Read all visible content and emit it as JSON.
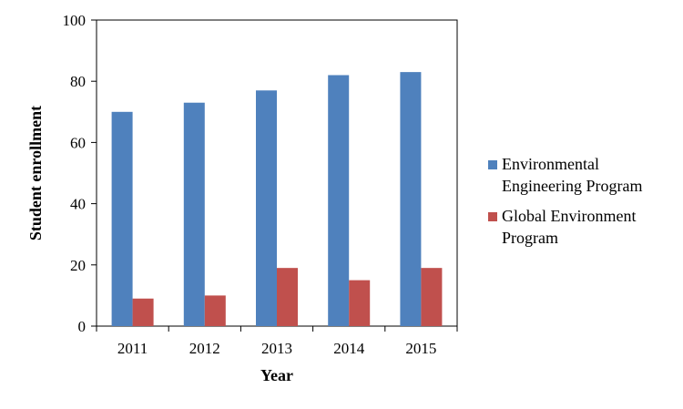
{
  "chart_data": {
    "type": "bar",
    "categories": [
      "2011",
      "2012",
      "2013",
      "2014",
      "2015"
    ],
    "series": [
      {
        "name": "Environmental Engineering Program",
        "name_lines": [
          "Environmental",
          "Engineering Program"
        ],
        "values": [
          70,
          73,
          77,
          82,
          83
        ],
        "color": "#4F81BD"
      },
      {
        "name": "Global Environment Program",
        "name_lines": [
          "Global Environment",
          "Program"
        ],
        "values": [
          9,
          10,
          19,
          15,
          19
        ],
        "color": "#C0504D"
      }
    ],
    "xlabel": "Year",
    "ylabel": "Student enrollment",
    "ylim": [
      0,
      100
    ],
    "yticks": [
      0,
      20,
      40,
      60,
      80,
      100
    ],
    "grid": false,
    "legend_position": "right"
  }
}
